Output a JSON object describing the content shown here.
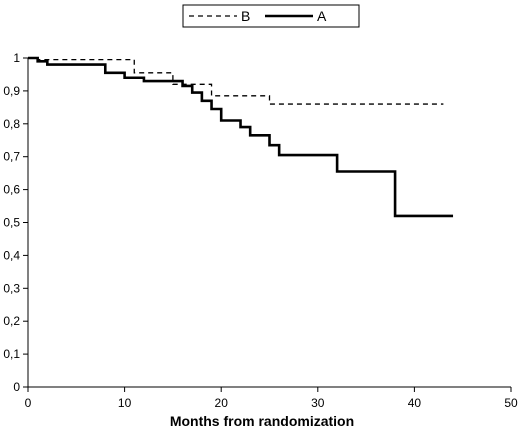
{
  "chart_data": {
    "type": "line",
    "title": "",
    "xlabel": "Months from randomization",
    "ylabel": "",
    "xlim": [
      0,
      50
    ],
    "ylim": [
      0,
      1
    ],
    "x_ticks": [
      0,
      10,
      20,
      30,
      40,
      50
    ],
    "x_tick_labels": [
      "0",
      "10",
      "20",
      "30",
      "40",
      "50"
    ],
    "y_ticks": [
      0,
      0.1,
      0.2,
      0.3,
      0.4,
      0.5,
      0.6,
      0.7,
      0.8,
      0.9,
      1
    ],
    "y_tick_labels": [
      "0",
      "0,1",
      "0,2",
      "0,3",
      "0,4",
      "0,5",
      "0,6",
      "0,7",
      "0,8",
      "0,9",
      "1"
    ],
    "grid": false,
    "legend_position": "top-center",
    "step": true,
    "series": [
      {
        "name": "B",
        "style": "dashed",
        "color": "#000000",
        "x": [
          0,
          1,
          11,
          15,
          19,
          25,
          43
        ],
        "y": [
          1.0,
          0.995,
          0.955,
          0.92,
          0.885,
          0.86,
          0.86
        ]
      },
      {
        "name": "A",
        "style": "solid",
        "color": "#000000",
        "x": [
          0,
          1,
          2,
          8,
          10,
          12,
          16,
          17,
          18,
          19,
          20,
          22,
          23,
          25,
          26,
          32,
          38,
          44
        ],
        "y": [
          1.0,
          0.99,
          0.98,
          0.955,
          0.94,
          0.93,
          0.915,
          0.895,
          0.87,
          0.845,
          0.81,
          0.79,
          0.765,
          0.735,
          0.705,
          0.655,
          0.52,
          0.52
        ]
      }
    ]
  }
}
